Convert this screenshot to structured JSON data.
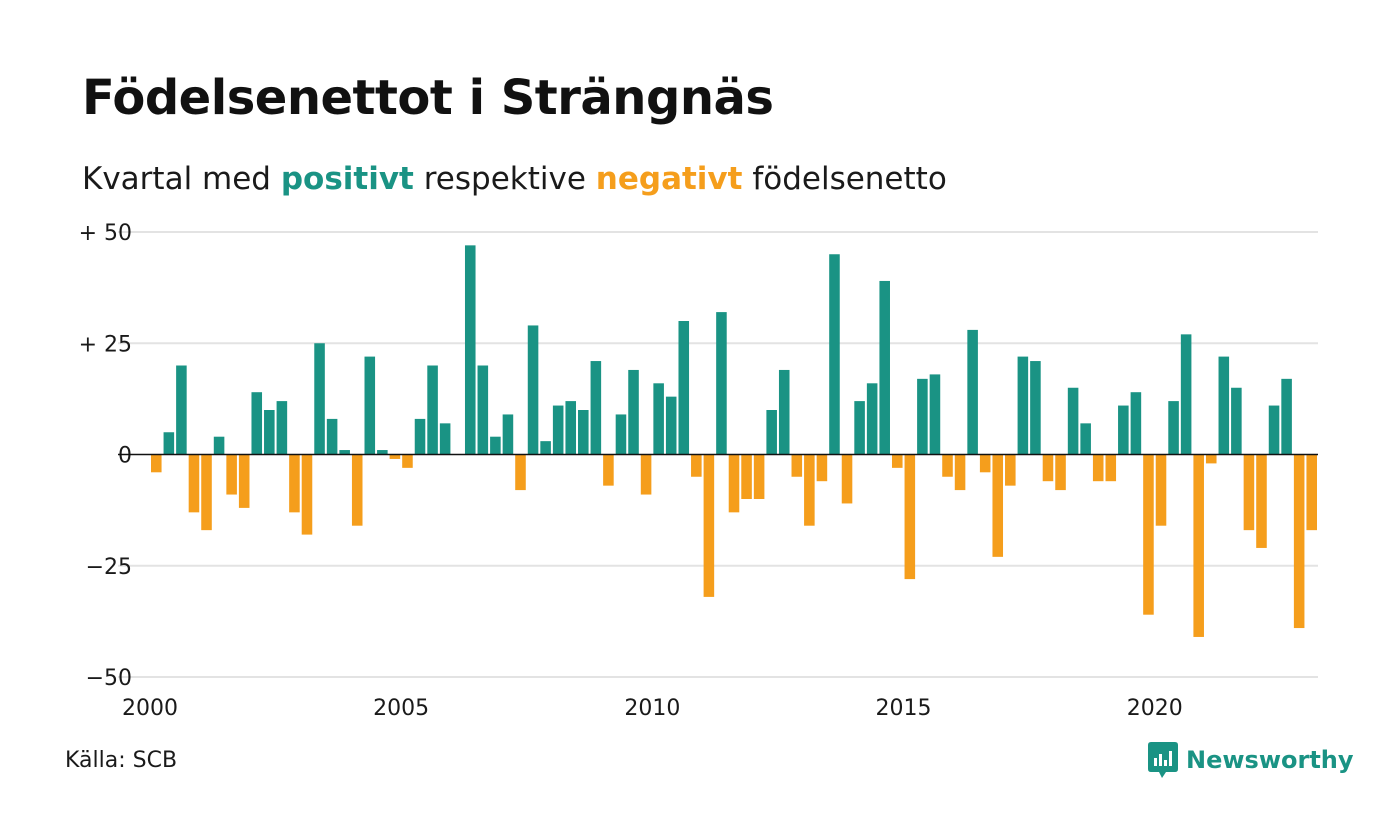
{
  "title": "Födelsenettot i Strängnäs",
  "subtitle": {
    "before": "Kvartal med ",
    "positive_word": "positivt",
    "middle": " respektive ",
    "negative_word": "negativt",
    "after": " födelsenetto"
  },
  "colors": {
    "positive": "#1a9384",
    "negative": "#f59e1c",
    "grid": "#e3e3e3",
    "zero_line": "#111111"
  },
  "source": "Källa: SCB",
  "logo": {
    "text": "Newsworthy",
    "icon": "newsworthy-logo-icon",
    "color": "#1a9384"
  },
  "chart_data": {
    "type": "bar",
    "title": "Födelsenettot i Strängnäs",
    "subtitle": "Kvartal med positivt respektive negativt födelsenetto",
    "x_start": 2000,
    "x_step": 0.25,
    "xlim": [
      2000,
      2023.25
    ],
    "ylim": [
      -50,
      50
    ],
    "y_ticks": [
      50,
      25,
      0,
      -25,
      -50
    ],
    "y_tick_labels": [
      "+ 50",
      "+ 25",
      "0",
      "−25",
      "−50"
    ],
    "x_ticks": [
      2000,
      2005,
      2010,
      2015,
      2020
    ],
    "x_tick_labels": [
      "2000",
      "2005",
      "2010",
      "2015",
      "2020"
    ],
    "grid": true,
    "values": [
      -4,
      5,
      20,
      -13,
      -17,
      4,
      -9,
      -12,
      14,
      10,
      12,
      -13,
      -18,
      25,
      8,
      1,
      -16,
      22,
      1,
      -1,
      -3,
      8,
      20,
      7,
      0,
      47,
      20,
      4,
      9,
      -8,
      29,
      3,
      11,
      12,
      10,
      21,
      -7,
      9,
      19,
      -9,
      16,
      13,
      30,
      -5,
      -32,
      32,
      -13,
      -10,
      -10,
      10,
      19,
      -5,
      -16,
      -6,
      45,
      -11,
      12,
      16,
      39,
      -3,
      -28,
      17,
      18,
      -5,
      -8,
      28,
      -4,
      -23,
      -7,
      22,
      21,
      -6,
      -8,
      15,
      7,
      -6,
      -6,
      11,
      14,
      -36,
      -16,
      12,
      27,
      -41,
      -2,
      22,
      15,
      -17,
      -21,
      11,
      17,
      -39,
      -17
    ]
  }
}
